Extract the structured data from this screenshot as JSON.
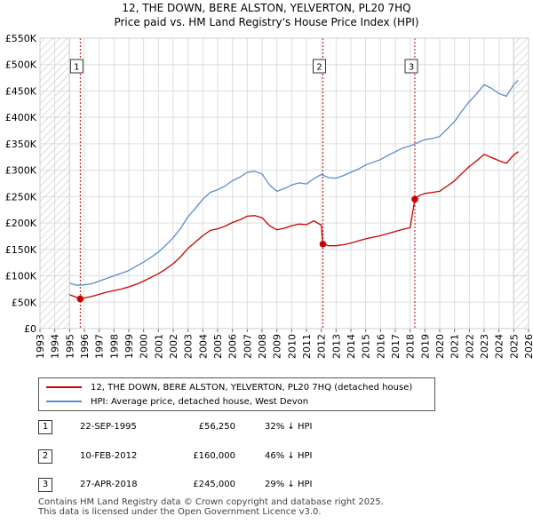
{
  "title": {
    "line1": "12, THE DOWN, BERE ALSTON, YELVERTON, PL20 7HQ",
    "line2": "Price paid vs. HM Land Registry's House Price Index (HPI)"
  },
  "legend": {
    "property": "12, THE DOWN, BERE ALSTON, YELVERTON, PL20 7HQ (detached house)",
    "hpi": "HPI: Average price, detached house, West Devon"
  },
  "colors": {
    "property": "#cc0000",
    "hpi": "#5b8ccc",
    "event": "#cc0000",
    "hatch": "#bbbbbb"
  },
  "sales": [
    {
      "id": "1",
      "date": "22-SEP-1995",
      "price": "£56,250",
      "hpi": "32% ↓ HPI"
    },
    {
      "id": "2",
      "date": "10-FEB-2012",
      "price": "£160,000",
      "hpi": "46% ↓ HPI"
    },
    {
      "id": "3",
      "date": "27-APR-2018",
      "price": "£245,000",
      "hpi": "29% ↓ HPI"
    }
  ],
  "footer": {
    "line1": "Contains HM Land Registry data © Crown copyright and database right 2025.",
    "line2": "This data is licensed under the Open Government Licence v3.0."
  },
  "chart_data": {
    "type": "line",
    "ylim": [
      0,
      550000
    ],
    "xlim": [
      1993,
      2026
    ],
    "y_ticks": [
      {
        "v": 0,
        "label": "£0"
      },
      {
        "v": 50000,
        "label": "£50K"
      },
      {
        "v": 100000,
        "label": "£100K"
      },
      {
        "v": 150000,
        "label": "£150K"
      },
      {
        "v": 200000,
        "label": "£200K"
      },
      {
        "v": 250000,
        "label": "£250K"
      },
      {
        "v": 300000,
        "label": "£300K"
      },
      {
        "v": 350000,
        "label": "£350K"
      },
      {
        "v": 400000,
        "label": "£400K"
      },
      {
        "v": 450000,
        "label": "£450K"
      },
      {
        "v": 500000,
        "label": "£500K"
      },
      {
        "v": 550000,
        "label": "£550K"
      }
    ],
    "x_ticks": [
      "1993",
      "1994",
      "1995",
      "1996",
      "1997",
      "1998",
      "1999",
      "2000",
      "2001",
      "2002",
      "2003",
      "2004",
      "2005",
      "2006",
      "2007",
      "2008",
      "2009",
      "2010",
      "2011",
      "2012",
      "2013",
      "2014",
      "2015",
      "2016",
      "2017",
      "2018",
      "2019",
      "2020",
      "2021",
      "2022",
      "2023",
      "2024",
      "2025",
      "2026"
    ],
    "hatch_ranges": [
      [
        1993,
        1995.0
      ],
      [
        2025.0,
        2026
      ]
    ],
    "events": [
      {
        "label": "1",
        "x": 1995.72,
        "y": 56250
      },
      {
        "label": "2",
        "x": 2012.11,
        "y": 160000
      },
      {
        "label": "3",
        "x": 2018.32,
        "y": 245000
      }
    ],
    "series": [
      {
        "name": "HPI: Average price, detached house, West Devon",
        "points": [
          [
            1995.0,
            86000
          ],
          [
            1995.5,
            82000
          ],
          [
            1996.0,
            83000
          ],
          [
            1996.5,
            85000
          ],
          [
            1997.0,
            90000
          ],
          [
            1997.5,
            95000
          ],
          [
            1998.0,
            100000
          ],
          [
            1998.5,
            105000
          ],
          [
            1999.0,
            110000
          ],
          [
            1999.5,
            118000
          ],
          [
            2000.0,
            126000
          ],
          [
            2000.5,
            135000
          ],
          [
            2001.0,
            145000
          ],
          [
            2001.5,
            158000
          ],
          [
            2002.0,
            172000
          ],
          [
            2002.5,
            190000
          ],
          [
            2003.0,
            212000
          ],
          [
            2003.5,
            228000
          ],
          [
            2004.0,
            245000
          ],
          [
            2004.5,
            258000
          ],
          [
            2005.0,
            263000
          ],
          [
            2005.5,
            270000
          ],
          [
            2006.0,
            280000
          ],
          [
            2006.5,
            287000
          ],
          [
            2007.0,
            296000
          ],
          [
            2007.5,
            298000
          ],
          [
            2008.0,
            293000
          ],
          [
            2008.5,
            272000
          ],
          [
            2009.0,
            260000
          ],
          [
            2009.5,
            265000
          ],
          [
            2010.0,
            272000
          ],
          [
            2010.5,
            276000
          ],
          [
            2011.0,
            274000
          ],
          [
            2011.5,
            284000
          ],
          [
            2012.0,
            292000
          ],
          [
            2012.5,
            286000
          ],
          [
            2013.0,
            285000
          ],
          [
            2013.5,
            290000
          ],
          [
            2014.0,
            296000
          ],
          [
            2014.5,
            302000
          ],
          [
            2015.0,
            310000
          ],
          [
            2015.5,
            315000
          ],
          [
            2016.0,
            320000
          ],
          [
            2016.5,
            328000
          ],
          [
            2017.0,
            335000
          ],
          [
            2017.5,
            342000
          ],
          [
            2018.0,
            346000
          ],
          [
            2018.5,
            352000
          ],
          [
            2019.0,
            358000
          ],
          [
            2019.5,
            360000
          ],
          [
            2020.0,
            364000
          ],
          [
            2020.5,
            378000
          ],
          [
            2021.0,
            392000
          ],
          [
            2021.5,
            412000
          ],
          [
            2022.0,
            430000
          ],
          [
            2022.5,
            445000
          ],
          [
            2023.0,
            462000
          ],
          [
            2023.5,
            455000
          ],
          [
            2024.0,
            445000
          ],
          [
            2024.5,
            440000
          ],
          [
            2025.0,
            462000
          ],
          [
            2025.3,
            470000
          ]
        ]
      },
      {
        "name": "12, THE DOWN, BERE ALSTON, YELVERTON, PL20 7HQ (detached house)",
        "points": [
          [
            1995.0,
            64000
          ],
          [
            1995.5,
            59000
          ],
          [
            1995.72,
            56250
          ],
          [
            1996.0,
            58000
          ],
          [
            1996.5,
            61000
          ],
          [
            1997.0,
            65000
          ],
          [
            1997.5,
            69000
          ],
          [
            1998.0,
            72000
          ],
          [
            1998.5,
            75000
          ],
          [
            1999.0,
            79000
          ],
          [
            1999.5,
            84000
          ],
          [
            2000.0,
            90000
          ],
          [
            2000.5,
            97000
          ],
          [
            2001.0,
            104000
          ],
          [
            2001.5,
            113000
          ],
          [
            2002.0,
            123000
          ],
          [
            2002.5,
            136000
          ],
          [
            2003.0,
            152000
          ],
          [
            2003.5,
            164000
          ],
          [
            2004.0,
            176000
          ],
          [
            2004.5,
            186000
          ],
          [
            2005.0,
            189000
          ],
          [
            2005.5,
            194000
          ],
          [
            2006.0,
            201000
          ],
          [
            2006.5,
            206000
          ],
          [
            2007.0,
            213000
          ],
          [
            2007.5,
            214000
          ],
          [
            2008.0,
            210000
          ],
          [
            2008.5,
            195000
          ],
          [
            2009.0,
            187000
          ],
          [
            2009.5,
            190000
          ],
          [
            2010.0,
            195000
          ],
          [
            2010.5,
            198000
          ],
          [
            2011.0,
            197000
          ],
          [
            2011.5,
            204000
          ],
          [
            2012.0,
            196000
          ],
          [
            2012.11,
            160000
          ],
          [
            2012.5,
            157000
          ],
          [
            2013.0,
            157000
          ],
          [
            2013.5,
            159000
          ],
          [
            2014.0,
            162000
          ],
          [
            2014.5,
            166000
          ],
          [
            2015.0,
            170000
          ],
          [
            2015.5,
            173000
          ],
          [
            2016.0,
            176000
          ],
          [
            2016.5,
            180000
          ],
          [
            2017.0,
            184000
          ],
          [
            2017.5,
            188000
          ],
          [
            2018.0,
            191000
          ],
          [
            2018.32,
            245000
          ],
          [
            2018.6,
            252000
          ],
          [
            2019.0,
            256000
          ],
          [
            2019.5,
            258000
          ],
          [
            2020.0,
            260000
          ],
          [
            2020.5,
            270000
          ],
          [
            2021.0,
            280000
          ],
          [
            2021.5,
            294000
          ],
          [
            2022.0,
            307000
          ],
          [
            2022.5,
            318000
          ],
          [
            2023.0,
            330000
          ],
          [
            2023.5,
            324000
          ],
          [
            2024.0,
            318000
          ],
          [
            2024.5,
            313000
          ],
          [
            2025.0,
            329000
          ],
          [
            2025.3,
            335000
          ]
        ]
      }
    ]
  }
}
